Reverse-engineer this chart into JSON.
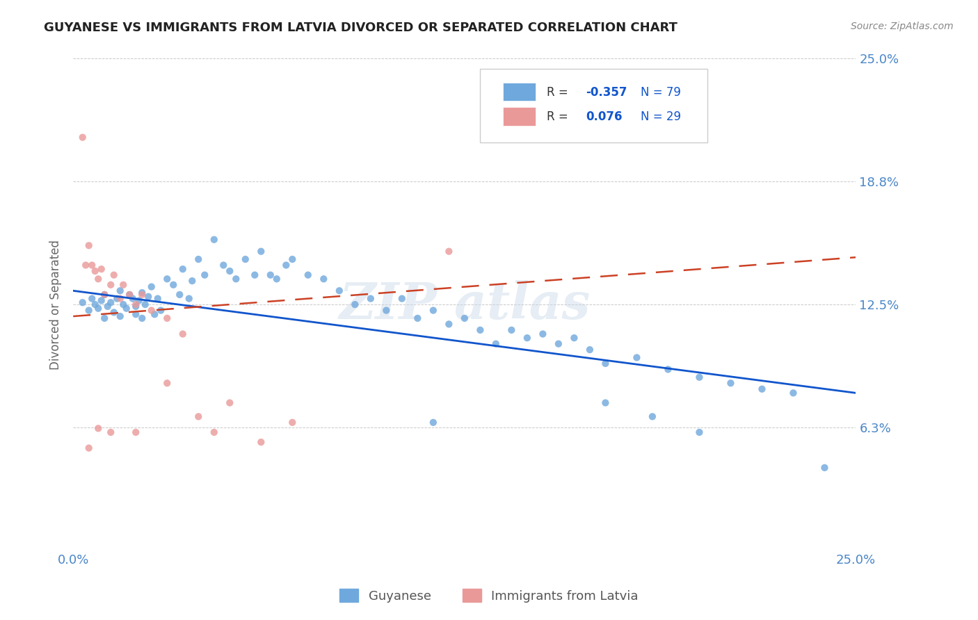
{
  "title": "GUYANESE VS IMMIGRANTS FROM LATVIA DIVORCED OR SEPARATED CORRELATION CHART",
  "source_text": "Source: ZipAtlas.com",
  "ylabel": "Divorced or Separated",
  "xlim": [
    0.0,
    0.25
  ],
  "ylim": [
    0.0,
    0.25
  ],
  "ytick_vals": [
    0.0,
    0.0625,
    0.125,
    0.1875,
    0.25
  ],
  "ytick_labels_right": [
    "",
    "6.3%",
    "12.5%",
    "18.8%",
    "25.0%"
  ],
  "xtick_vals": [
    0.0,
    0.25
  ],
  "xtick_labels": [
    "0.0%",
    "25.0%"
  ],
  "legend1_r": "-0.357",
  "legend1_n": "79",
  "legend2_r": "0.076",
  "legend2_n": "29",
  "legend_label_guyanese": "Guyanese",
  "legend_label_latvia": "Immigrants from Latvia",
  "blue_color": "#6fa8dc",
  "pink_color": "#ea9999",
  "blue_line_color": "#1155cc",
  "pink_line_color": "#cc4125",
  "axis_label_color": "#4a86c8",
  "grid_color": "#b0b0b0",
  "blue_scatter_x": [
    0.003,
    0.005,
    0.006,
    0.007,
    0.008,
    0.009,
    0.01,
    0.01,
    0.011,
    0.012,
    0.013,
    0.014,
    0.015,
    0.015,
    0.016,
    0.017,
    0.018,
    0.019,
    0.02,
    0.02,
    0.021,
    0.022,
    0.022,
    0.023,
    0.024,
    0.025,
    0.026,
    0.027,
    0.028,
    0.03,
    0.032,
    0.034,
    0.035,
    0.037,
    0.038,
    0.04,
    0.042,
    0.045,
    0.048,
    0.05,
    0.052,
    0.055,
    0.058,
    0.06,
    0.063,
    0.065,
    0.068,
    0.07,
    0.075,
    0.08,
    0.085,
    0.09,
    0.095,
    0.1,
    0.105,
    0.11,
    0.115,
    0.12,
    0.125,
    0.13,
    0.135,
    0.14,
    0.145,
    0.15,
    0.155,
    0.16,
    0.165,
    0.17,
    0.18,
    0.19,
    0.2,
    0.21,
    0.22,
    0.23,
    0.115,
    0.17,
    0.185,
    0.2,
    0.24
  ],
  "blue_scatter_y": [
    0.126,
    0.122,
    0.128,
    0.125,
    0.123,
    0.127,
    0.13,
    0.118,
    0.124,
    0.126,
    0.121,
    0.128,
    0.132,
    0.119,
    0.125,
    0.123,
    0.13,
    0.128,
    0.124,
    0.12,
    0.127,
    0.131,
    0.118,
    0.125,
    0.129,
    0.134,
    0.12,
    0.128,
    0.122,
    0.138,
    0.135,
    0.13,
    0.143,
    0.128,
    0.137,
    0.148,
    0.14,
    0.158,
    0.145,
    0.142,
    0.138,
    0.148,
    0.14,
    0.152,
    0.14,
    0.138,
    0.145,
    0.148,
    0.14,
    0.138,
    0.132,
    0.125,
    0.128,
    0.122,
    0.128,
    0.118,
    0.122,
    0.115,
    0.118,
    0.112,
    0.105,
    0.112,
    0.108,
    0.11,
    0.105,
    0.108,
    0.102,
    0.095,
    0.098,
    0.092,
    0.088,
    0.085,
    0.082,
    0.08,
    0.065,
    0.075,
    0.068,
    0.06,
    0.042
  ],
  "pink_scatter_x": [
    0.003,
    0.004,
    0.005,
    0.006,
    0.007,
    0.008,
    0.009,
    0.01,
    0.012,
    0.013,
    0.015,
    0.016,
    0.018,
    0.02,
    0.022,
    0.025,
    0.03,
    0.035,
    0.04,
    0.045,
    0.05,
    0.06,
    0.07,
    0.12,
    0.005,
    0.008,
    0.012,
    0.02,
    0.03
  ],
  "pink_scatter_y": [
    0.21,
    0.145,
    0.155,
    0.145,
    0.142,
    0.138,
    0.143,
    0.13,
    0.135,
    0.14,
    0.128,
    0.135,
    0.13,
    0.125,
    0.13,
    0.122,
    0.118,
    0.11,
    0.068,
    0.06,
    0.075,
    0.055,
    0.065,
    0.152,
    0.052,
    0.062,
    0.06,
    0.06,
    0.085
  ]
}
